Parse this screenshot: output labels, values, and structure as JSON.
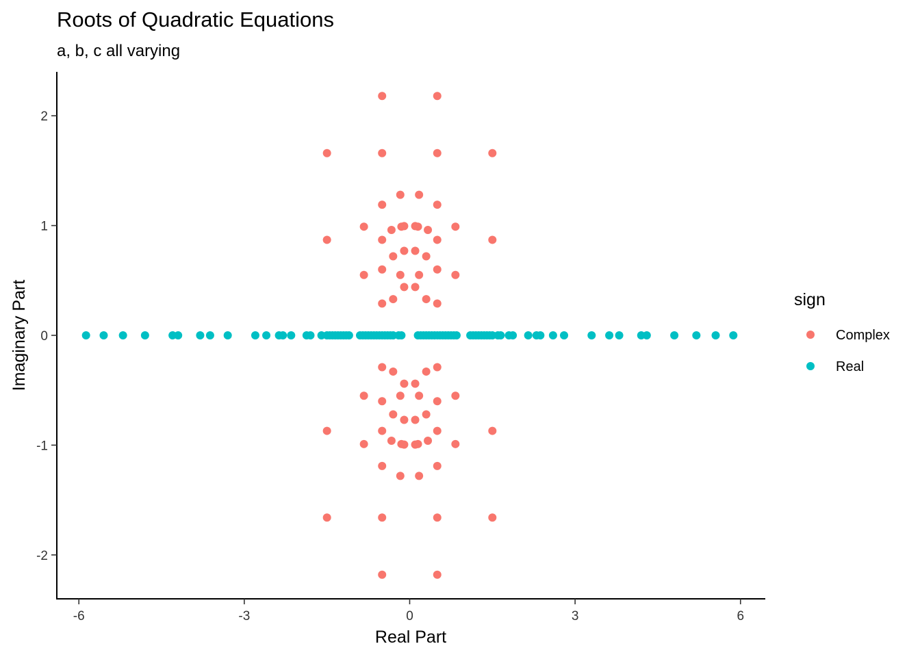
{
  "chart_data": {
    "type": "scatter",
    "title": "Roots of Quadratic Equations",
    "subtitle": "a, b, c all varying",
    "xlabel": "Real Part",
    "ylabel": "Imaginary Part",
    "xlim": [
      -6.4,
      6.45
    ],
    "ylim": [
      -2.4,
      2.4
    ],
    "x_ticks": [
      -6,
      -3,
      0,
      3,
      6
    ],
    "y_ticks": [
      -2,
      -1,
      0,
      1,
      2
    ],
    "x_tick_labels": [
      "-6",
      "-3",
      "0",
      "3",
      "6"
    ],
    "y_tick_labels": [
      "-2",
      "-1",
      "0",
      "1",
      "2"
    ],
    "grid": false,
    "legend": {
      "title": "sign",
      "position": "right",
      "entries": [
        {
          "label": "Complex",
          "color": "#F8766D"
        },
        {
          "label": "Real",
          "color": "#00BFC4"
        }
      ]
    },
    "series": [
      {
        "name": "Complex",
        "color": "#F8766D",
        "points": [
          [
            -0.5,
            2.18
          ],
          [
            0.5,
            2.18
          ],
          [
            -0.5,
            -2.18
          ],
          [
            0.5,
            -2.18
          ],
          [
            -1.5,
            1.66
          ],
          [
            -0.5,
            1.66
          ],
          [
            0.5,
            1.66
          ],
          [
            1.5,
            1.66
          ],
          [
            -1.5,
            -1.66
          ],
          [
            -0.5,
            -1.66
          ],
          [
            0.5,
            -1.66
          ],
          [
            1.5,
            -1.66
          ],
          [
            -0.17,
            1.28
          ],
          [
            0.17,
            1.28
          ],
          [
            -0.17,
            -1.28
          ],
          [
            0.17,
            -1.28
          ],
          [
            -0.5,
            1.19
          ],
          [
            0.5,
            1.19
          ],
          [
            -0.5,
            -1.19
          ],
          [
            0.5,
            -1.19
          ],
          [
            -0.83,
            0.99
          ],
          [
            0.83,
            0.99
          ],
          [
            -0.83,
            -0.99
          ],
          [
            0.83,
            -0.99
          ],
          [
            -0.1,
            0.995
          ],
          [
            0.1,
            0.995
          ],
          [
            -0.1,
            -0.995
          ],
          [
            0.1,
            -0.995
          ],
          [
            -0.15,
            0.99
          ],
          [
            0.15,
            0.99
          ],
          [
            -0.15,
            -0.99
          ],
          [
            0.15,
            -0.99
          ],
          [
            -0.33,
            0.96
          ],
          [
            0.33,
            0.96
          ],
          [
            -0.33,
            -0.96
          ],
          [
            0.33,
            -0.96
          ],
          [
            -1.5,
            0.87
          ],
          [
            -0.5,
            0.87
          ],
          [
            0.5,
            0.87
          ],
          [
            1.5,
            0.87
          ],
          [
            -1.5,
            -0.87
          ],
          [
            -0.5,
            -0.87
          ],
          [
            0.5,
            -0.87
          ],
          [
            1.5,
            -0.87
          ],
          [
            -0.1,
            0.77
          ],
          [
            0.1,
            0.77
          ],
          [
            -0.1,
            -0.77
          ],
          [
            0.1,
            -0.77
          ],
          [
            -0.3,
            0.72
          ],
          [
            0.3,
            0.72
          ],
          [
            -0.3,
            -0.72
          ],
          [
            0.3,
            -0.72
          ],
          [
            -0.5,
            0.6
          ],
          [
            0.5,
            0.6
          ],
          [
            -0.5,
            -0.6
          ],
          [
            0.5,
            -0.6
          ],
          [
            -0.83,
            0.55
          ],
          [
            0.83,
            0.55
          ],
          [
            -0.83,
            -0.55
          ],
          [
            0.83,
            -0.55
          ],
          [
            -0.17,
            0.55
          ],
          [
            0.17,
            0.55
          ],
          [
            -0.17,
            -0.55
          ],
          [
            0.17,
            -0.55
          ],
          [
            -0.1,
            0.44
          ],
          [
            0.1,
            0.44
          ],
          [
            -0.1,
            -0.44
          ],
          [
            0.1,
            -0.44
          ],
          [
            -0.3,
            0.33
          ],
          [
            0.3,
            0.33
          ],
          [
            -0.3,
            -0.33
          ],
          [
            0.3,
            -0.33
          ],
          [
            -0.5,
            0.29
          ],
          [
            0.5,
            0.29
          ],
          [
            -0.5,
            -0.29
          ],
          [
            0.5,
            -0.29
          ]
        ]
      },
      {
        "name": "Real",
        "color": "#00BFC4",
        "points": [
          [
            -5.87,
            0
          ],
          [
            -5.55,
            0
          ],
          [
            -5.2,
            0
          ],
          [
            -4.8,
            0
          ],
          [
            -4.3,
            0
          ],
          [
            -4.2,
            0
          ],
          [
            -3.8,
            0
          ],
          [
            -3.62,
            0
          ],
          [
            -3.3,
            0
          ],
          [
            -2.8,
            0
          ],
          [
            -2.6,
            0
          ],
          [
            -2.37,
            0
          ],
          [
            -2.3,
            0
          ],
          [
            -2.15,
            0
          ],
          [
            -1.87,
            0
          ],
          [
            -1.8,
            0
          ],
          [
            -1.6,
            0
          ],
          [
            -1.5,
            0
          ],
          [
            -1.45,
            0
          ],
          [
            -1.4,
            0
          ],
          [
            -1.35,
            0
          ],
          [
            -1.3,
            0
          ],
          [
            -1.25,
            0
          ],
          [
            -1.2,
            0
          ],
          [
            -1.15,
            0
          ],
          [
            -1.1,
            0
          ],
          [
            -0.9,
            0
          ],
          [
            -0.85,
            0
          ],
          [
            -0.8,
            0
          ],
          [
            -0.75,
            0
          ],
          [
            -0.7,
            0
          ],
          [
            -0.65,
            0
          ],
          [
            -0.6,
            0
          ],
          [
            -0.55,
            0
          ],
          [
            -0.5,
            0
          ],
          [
            -0.45,
            0
          ],
          [
            -0.4,
            0
          ],
          [
            -0.35,
            0
          ],
          [
            -0.3,
            0
          ],
          [
            -0.2,
            0
          ],
          [
            -0.15,
            0
          ],
          [
            0.15,
            0
          ],
          [
            0.2,
            0
          ],
          [
            0.25,
            0
          ],
          [
            0.3,
            0
          ],
          [
            0.35,
            0
          ],
          [
            0.4,
            0
          ],
          [
            0.45,
            0
          ],
          [
            0.5,
            0
          ],
          [
            0.55,
            0
          ],
          [
            0.6,
            0
          ],
          [
            0.65,
            0
          ],
          [
            0.7,
            0
          ],
          [
            0.75,
            0
          ],
          [
            0.8,
            0
          ],
          [
            0.85,
            0
          ],
          [
            1.1,
            0
          ],
          [
            1.15,
            0
          ],
          [
            1.2,
            0
          ],
          [
            1.25,
            0
          ],
          [
            1.3,
            0
          ],
          [
            1.35,
            0
          ],
          [
            1.4,
            0
          ],
          [
            1.45,
            0
          ],
          [
            1.5,
            0
          ],
          [
            1.6,
            0
          ],
          [
            1.65,
            0
          ],
          [
            1.8,
            0
          ],
          [
            1.87,
            0
          ],
          [
            2.15,
            0
          ],
          [
            2.3,
            0
          ],
          [
            2.37,
            0
          ],
          [
            2.6,
            0
          ],
          [
            2.8,
            0
          ],
          [
            3.3,
            0
          ],
          [
            3.62,
            0
          ],
          [
            3.8,
            0
          ],
          [
            4.2,
            0
          ],
          [
            4.3,
            0
          ],
          [
            4.8,
            0
          ],
          [
            5.2,
            0
          ],
          [
            5.55,
            0
          ],
          [
            5.87,
            0
          ]
        ]
      }
    ]
  }
}
